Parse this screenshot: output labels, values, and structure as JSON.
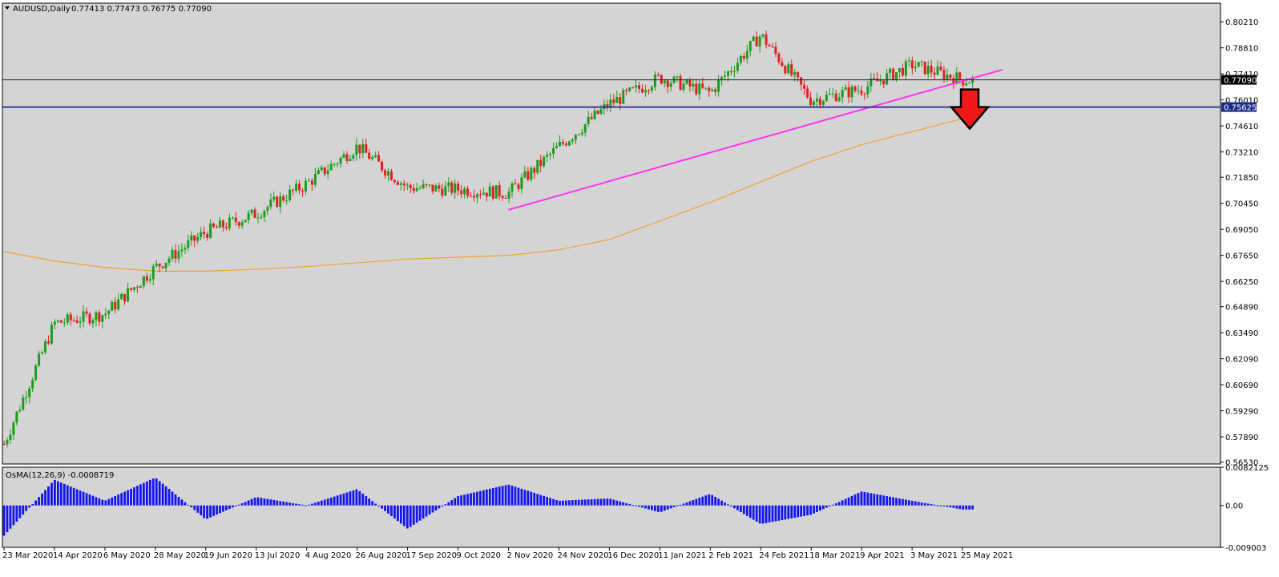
{
  "header": {
    "symbol": "AUDUSD,Daily",
    "ohlc": "0.77413 0.77473 0.76775 0.77090"
  },
  "osma": {
    "label": "OsMA(12,26,9) -0.0008719"
  },
  "colors": {
    "background": "#d4d4d4",
    "bull_candle": "#1a9e1a",
    "bear_candle": "#e02020",
    "moving_average": "#f0a030",
    "trendline": "#ff33ee",
    "support_line": "#1c2a8c",
    "current_price_line": "#222222",
    "osma_bars": "#1414f0",
    "arrow_fill": "#f01818"
  },
  "chart_data": [
    {
      "type": "candlestick",
      "title": "AUDUSD,Daily",
      "open": 0.77413,
      "high": 0.77473,
      "low": 0.76775,
      "close": 0.7709,
      "ylim": [
        0.5643,
        0.8121
      ],
      "y_ticks": [
        "0.80210",
        "0.78810",
        "0.77410",
        "0.76010",
        "0.74610",
        "0.73210",
        "0.71850",
        "0.70450",
        "0.69050",
        "0.67650",
        "0.66250",
        "0.64890",
        "0.63490",
        "0.62090",
        "0.60690",
        "0.59290",
        "0.57890",
        "0.56530"
      ],
      "x_ticks": [
        "23 Mar 2020",
        "14 Apr 2020",
        "6 May 2020",
        "28 May 2020",
        "19 Jun 2020",
        "13 Jul 2020",
        "4 Aug 2020",
        "26 Aug 2020",
        "17 Sep 2020",
        "9 Oct 2020",
        "2 Nov 2020",
        "24 Nov 2020",
        "16 Dec 2020",
        "11 Jan 2021",
        "2 Feb 2021",
        "24 Feb 2021",
        "18 Mar 2021",
        "9 Apr 2021",
        "3 May 2021",
        "25 May 2021"
      ],
      "horizontal_lines": [
        {
          "label": "0.77090",
          "value": 0.7709,
          "kind": "current price"
        },
        {
          "label": "0.75625",
          "value": 0.75625,
          "kind": "support"
        }
      ],
      "trendline": {
        "from": {
          "x": "2 Nov 2020",
          "y": 0.701
        },
        "to": {
          "x": "25 May 2021",
          "y": 0.7755
        }
      },
      "moving_average": [
        {
          "x": "23 Mar 2020",
          "y": 0.6785
        },
        {
          "x": "14 Apr 2020",
          "y": 0.6735
        },
        {
          "x": "6 May 2020",
          "y": 0.67
        },
        {
          "x": "28 May 2020",
          "y": 0.668
        },
        {
          "x": "19 Jun 2020",
          "y": 0.668
        },
        {
          "x": "13 Jul 2020",
          "y": 0.669
        },
        {
          "x": "4 Aug 2020",
          "y": 0.6705
        },
        {
          "x": "26 Aug 2020",
          "y": 0.6725
        },
        {
          "x": "17 Sep 2020",
          "y": 0.6745
        },
        {
          "x": "9 Oct 2020",
          "y": 0.6755
        },
        {
          "x": "2 Nov 2020",
          "y": 0.6765
        },
        {
          "x": "24 Nov 2020",
          "y": 0.6795
        },
        {
          "x": "16 Dec 2020",
          "y": 0.685
        },
        {
          "x": "11 Jan 2021",
          "y": 0.695
        },
        {
          "x": "2 Feb 2021",
          "y": 0.705
        },
        {
          "x": "24 Feb 2021",
          "y": 0.716
        },
        {
          "x": "18 Mar 2021",
          "y": 0.727
        },
        {
          "x": "9 Apr 2021",
          "y": 0.736
        },
        {
          "x": "3 May 2021",
          "y": 0.743
        },
        {
          "x": "25 May 2021",
          "y": 0.75
        }
      ],
      "price_path": [
        {
          "x": "23 Mar 2020",
          "y": 0.575
        },
        {
          "x": "14 Apr 2020",
          "y": 0.64
        },
        {
          "x": "6 May 2020",
          "y": 0.645
        },
        {
          "x": "28 May 2020",
          "y": 0.67
        },
        {
          "x": "19 Jun 2020",
          "y": 0.689
        },
        {
          "x": "13 Jul 2020",
          "y": 0.699
        },
        {
          "x": "4 Aug 2020",
          "y": 0.715
        },
        {
          "x": "26 Aug 2020",
          "y": 0.735
        },
        {
          "x": "17 Sep 2020",
          "y": 0.713
        },
        {
          "x": "9 Oct 2020",
          "y": 0.712
        },
        {
          "x": "2 Nov 2020",
          "y": 0.71
        },
        {
          "x": "24 Nov 2020",
          "y": 0.735
        },
        {
          "x": "16 Dec 2020",
          "y": 0.758
        },
        {
          "x": "11 Jan 2021",
          "y": 0.772
        },
        {
          "x": "2 Feb 2021",
          "y": 0.764
        },
        {
          "x": "24 Feb 2021",
          "y": 0.795
        },
        {
          "x": "18 Mar 2021",
          "y": 0.76
        },
        {
          "x": "9 Apr 2021",
          "y": 0.766
        },
        {
          "x": "3 May 2021",
          "y": 0.779
        },
        {
          "x": "25 May 2021",
          "y": 0.7709
        }
      ],
      "annotation": "red down arrow at 0.75625 support line"
    },
    {
      "type": "bar",
      "title": "OsMA(12,26,9) -0.0008719",
      "y_ticks": [
        "0.0082125",
        "0.00",
        "-0.009003"
      ],
      "ylim": [
        -0.009003,
        0.0082125
      ],
      "x_ticks": [
        "23 Mar 2020",
        "14 Apr 2020",
        "6 May 2020",
        "28 May 2020",
        "19 Jun 2020",
        "13 Jul 2020",
        "4 Aug 2020",
        "26 Aug 2020",
        "17 Sep 2020",
        "9 Oct 2020",
        "2 Nov 2020",
        "24 Nov 2020",
        "16 Dec 2020",
        "11 Jan 2021",
        "2 Feb 2021",
        "24 Feb 2021",
        "18 Mar 2021",
        "9 Apr 2021",
        "3 May 2021",
        "25 May 2021"
      ],
      "values": [
        -0.0065,
        0.0055,
        0.001,
        0.006,
        -0.003,
        0.0018,
        0.0,
        0.0035,
        -0.005,
        0.002,
        0.0045,
        0.001,
        0.0015,
        -0.0015,
        0.0025,
        -0.004,
        -0.002,
        0.003,
        0.001,
        -0.0008719
      ],
      "current_value": -0.0008719
    }
  ]
}
